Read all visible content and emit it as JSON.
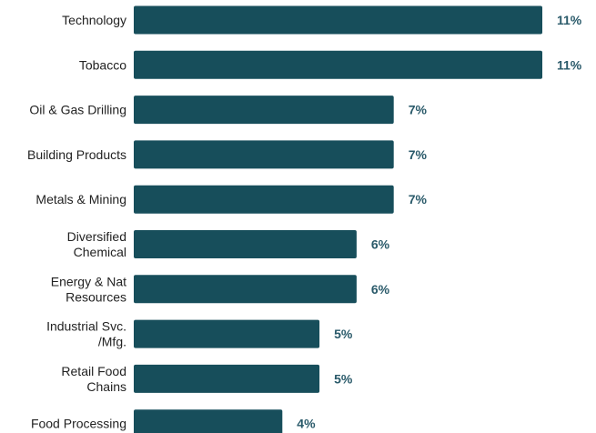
{
  "chart_data": {
    "type": "bar",
    "orientation": "horizontal",
    "title": "",
    "xlabel": "",
    "ylabel": "",
    "categories": [
      [
        "Technology"
      ],
      [
        "Tobacco"
      ],
      [
        "Oil & Gas Drilling"
      ],
      [
        "Building Products"
      ],
      [
        "Metals & Mining"
      ],
      [
        "Diversified",
        "Chemical"
      ],
      [
        "Energy & Nat",
        "Resources"
      ],
      [
        "Industrial Svc.",
        "/Mfg."
      ],
      [
        "Retail Food",
        "Chains"
      ],
      [
        "Food Processing"
      ]
    ],
    "values": [
      11,
      11,
      7,
      7,
      7,
      6,
      6,
      5,
      5,
      4
    ],
    "value_labels": [
      "11%",
      "11%",
      "7%",
      "7%",
      "7%",
      "6%",
      "6%",
      "5%",
      "5%",
      "4%"
    ],
    "unit": "%",
    "xlim": [
      0,
      11
    ],
    "grid": false,
    "legend": "none",
    "colors": {
      "bar": "#174e5b",
      "label": "#2a5a6a"
    }
  }
}
